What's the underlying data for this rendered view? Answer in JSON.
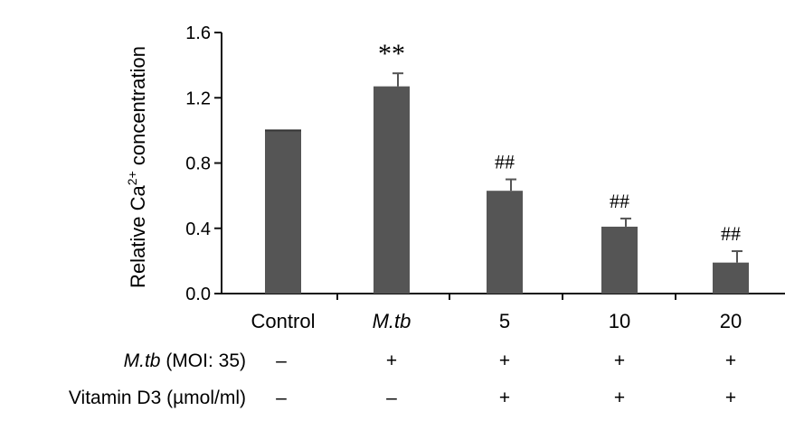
{
  "chart_data": {
    "type": "bar",
    "ylabel_prefix": "Relative Ca",
    "ylabel_superscript": "2+",
    "ylabel_suffix": " concentration",
    "ylim": [
      0,
      1.6
    ],
    "yticks": [
      "0.0",
      "0.4",
      "0.8",
      "1.2",
      "1.6"
    ],
    "ytick_values": [
      0,
      0.4,
      0.8,
      1.2,
      1.6
    ],
    "categories": [
      "Control",
      "M.tb",
      "5",
      "10",
      "20"
    ],
    "italic_categories": [
      false,
      true,
      false,
      false,
      false
    ],
    "values": [
      1.0,
      1.27,
      0.63,
      0.41,
      0.19
    ],
    "errors": [
      0.0,
      0.08,
      0.07,
      0.05,
      0.07
    ],
    "annotations": [
      "",
      "**",
      "##",
      "##",
      "##"
    ],
    "bar_color": "#555555",
    "condition_rows": [
      {
        "label_italic": "M.tb",
        "label_rest": " (MOI: 35)",
        "signs": [
          "–",
          "+",
          "+",
          "+",
          "+"
        ]
      },
      {
        "label_italic": "",
        "label_rest": "Vitamin D3 (µmol/ml)",
        "signs": [
          "–",
          "–",
          "+",
          "+",
          "+"
        ]
      }
    ]
  }
}
